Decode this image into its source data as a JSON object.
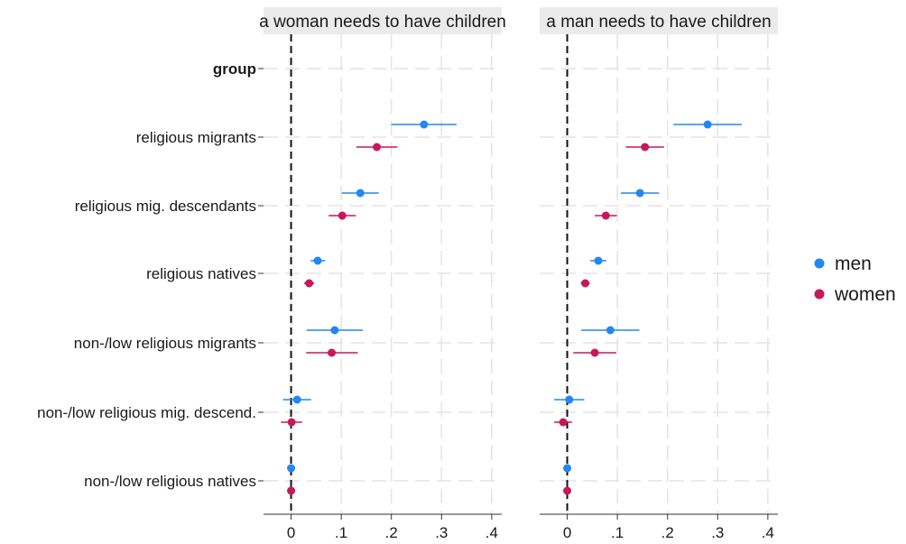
{
  "chart_data": {
    "type": "scatter",
    "subtype": "coefficient-plot-with-confidence-intervals",
    "panels": [
      {
        "title": "a woman needs to have children",
        "series": [
          {
            "name": "men",
            "estimates": [
              0.265,
              0.138,
              0.053,
              0.087,
              0.012,
              0.0
            ],
            "ci_low": [
              0.2,
              0.101,
              0.039,
              0.031,
              -0.016,
              0.0
            ],
            "ci_high": [
              0.33,
              0.175,
              0.068,
              0.143,
              0.04,
              0.0
            ]
          },
          {
            "name": "women",
            "estimates": [
              0.171,
              0.102,
              0.036,
              0.081,
              0.001,
              0.0
            ],
            "ci_low": [
              0.13,
              0.075,
              0.026,
              0.03,
              -0.02,
              0.0
            ],
            "ci_high": [
              0.212,
              0.129,
              0.046,
              0.133,
              0.022,
              0.0
            ]
          }
        ]
      },
      {
        "title": "a man needs to have children",
        "series": [
          {
            "name": "men",
            "estimates": [
              0.28,
              0.145,
              0.062,
              0.086,
              0.004,
              0.0
            ],
            "ci_low": [
              0.212,
              0.107,
              0.046,
              0.028,
              -0.026,
              0.0
            ],
            "ci_high": [
              0.348,
              0.183,
              0.078,
              0.144,
              0.034,
              0.0
            ]
          },
          {
            "name": "women",
            "estimates": [
              0.155,
              0.077,
              0.036,
              0.055,
              -0.008,
              0.0
            ],
            "ci_low": [
              0.117,
              0.055,
              0.027,
              0.012,
              -0.026,
              0.0
            ],
            "ci_high": [
              0.193,
              0.099,
              0.045,
              0.098,
              0.01,
              0.0
            ]
          }
        ]
      }
    ],
    "y_header": "group",
    "y_categories": [
      "religious migrants",
      "religious mig. descendants",
      "religious natives",
      "non-/low religious migrants",
      "non-/low religious mig. descend.",
      "non-/low religious natives"
    ],
    "x_ticks": [
      0,
      0.1,
      0.2,
      0.3,
      0.4
    ],
    "x_tick_labels": [
      "0",
      ".1",
      ".2",
      ".3",
      ".4"
    ],
    "xlim": [
      -0.055,
      0.42
    ],
    "reference_line": 0,
    "reference_line_style": "dashed",
    "grid": true,
    "legend": {
      "position": "right",
      "entries": [
        {
          "name": "men",
          "color": "#2287f0"
        },
        {
          "name": "women",
          "color": "#c7185a"
        }
      ]
    },
    "colors": {
      "men": "#2287f0",
      "women": "#c7185a"
    }
  }
}
